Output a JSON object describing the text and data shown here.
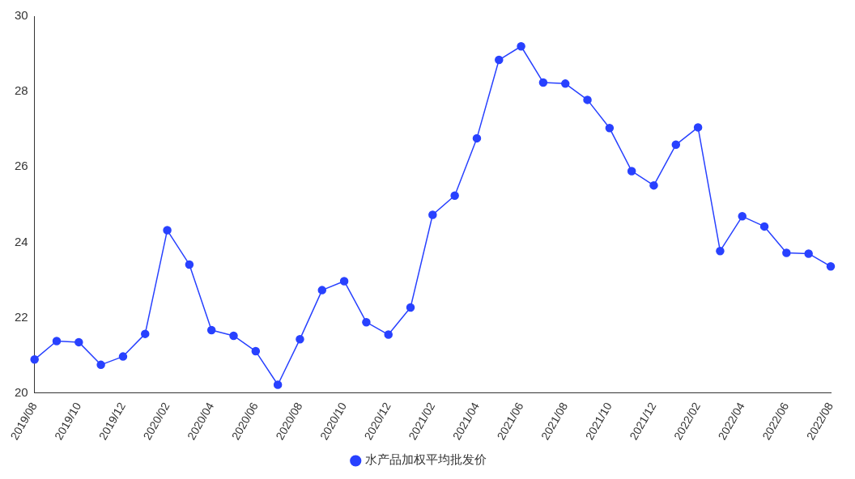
{
  "chart_data": {
    "type": "line",
    "categories": [
      "2019/08",
      null,
      "2019/10",
      null,
      "2019/12",
      null,
      "2020/02",
      null,
      "2020/04",
      null,
      "2020/06",
      null,
      "2020/08",
      null,
      "2020/10",
      null,
      "2020/12",
      null,
      "2021/02",
      null,
      "2021/04",
      null,
      "2021/06",
      null,
      "2021/08",
      null,
      "2021/10",
      null,
      "2021/12",
      null,
      "2022/02",
      null,
      "2022/04",
      null,
      "2022/06",
      null,
      "2022/08"
    ],
    "series": [
      {
        "name": "水产品加权平均批发价",
        "color": "#2841ff",
        "values": [
          20.89,
          21.38,
          21.35,
          20.75,
          20.97,
          21.57,
          24.32,
          23.41,
          21.67,
          21.52,
          21.11,
          20.22,
          21.43,
          22.73,
          22.97,
          21.88,
          21.55,
          22.27,
          24.73,
          25.24,
          26.76,
          28.84,
          29.2,
          28.24,
          28.21,
          27.78,
          27.03,
          25.89,
          25.51,
          26.59,
          27.05,
          23.77,
          24.69,
          24.42,
          23.72,
          23.7,
          23.36
        ]
      }
    ],
    "ylim": [
      20,
      30
    ],
    "yticks": [
      20,
      22,
      24,
      26,
      28,
      30
    ],
    "grid": false,
    "legend": "bottom",
    "marker": "circle",
    "line_style": "solid"
  }
}
